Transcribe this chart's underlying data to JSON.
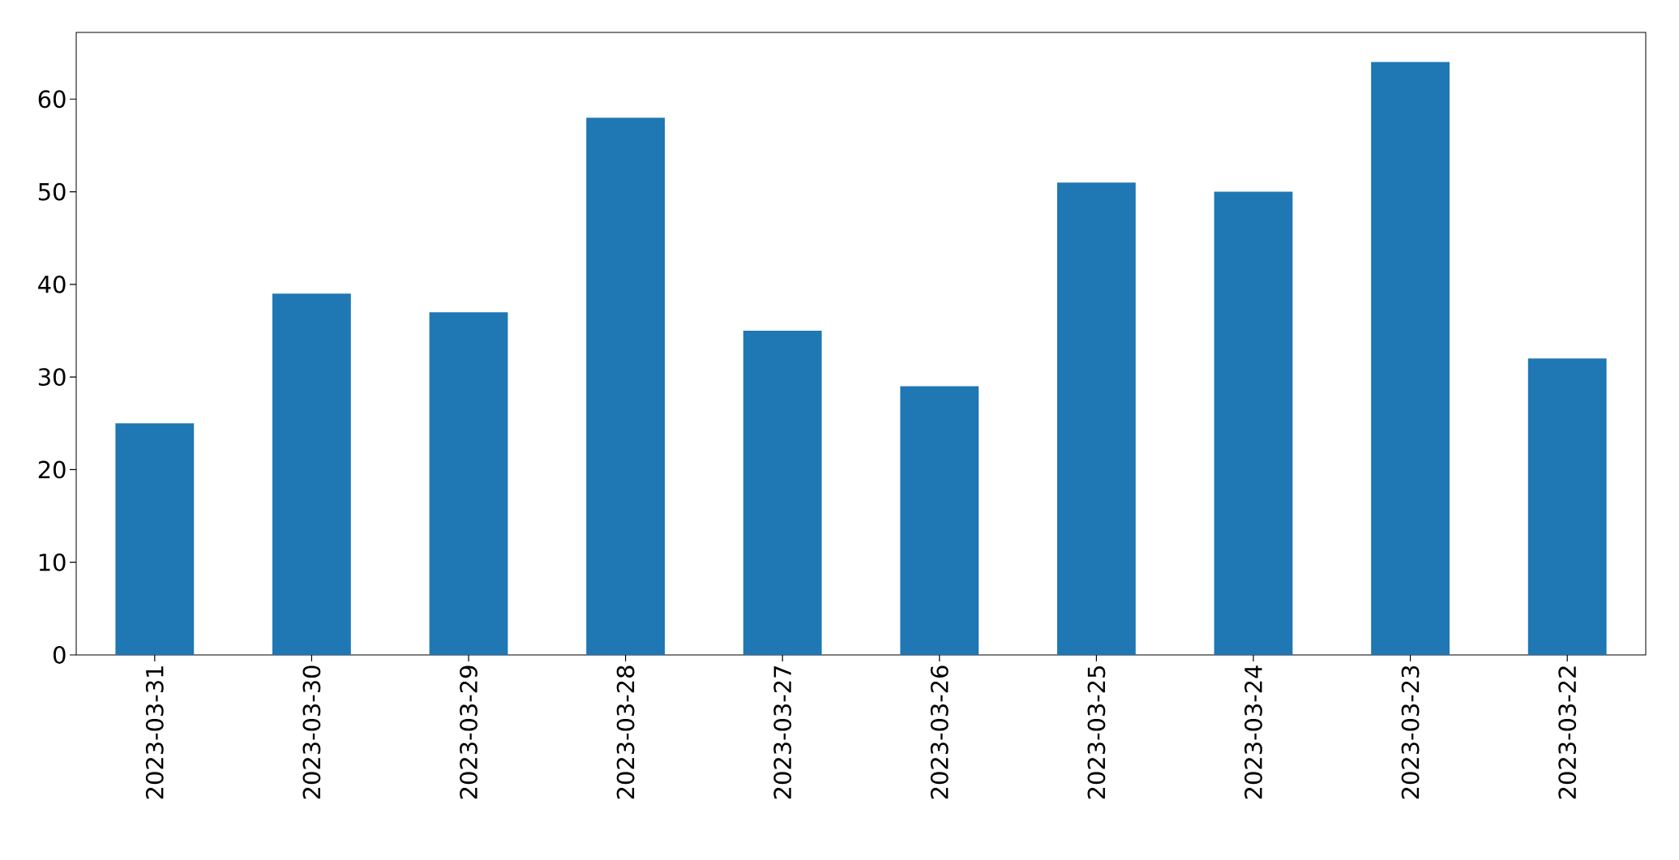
{
  "chart_data": {
    "type": "bar",
    "categories": [
      "2023-03-31",
      "2023-03-30",
      "2023-03-29",
      "2023-03-28",
      "2023-03-27",
      "2023-03-26",
      "2023-03-25",
      "2023-03-24",
      "2023-03-23",
      "2023-03-22"
    ],
    "values": [
      25,
      39,
      37,
      58,
      35,
      29,
      51,
      50,
      64,
      32
    ],
    "color": "#1f77b4",
    "ylim": [
      0,
      67.2
    ],
    "yticks": [
      0,
      10,
      20,
      30,
      40,
      50,
      60
    ]
  }
}
